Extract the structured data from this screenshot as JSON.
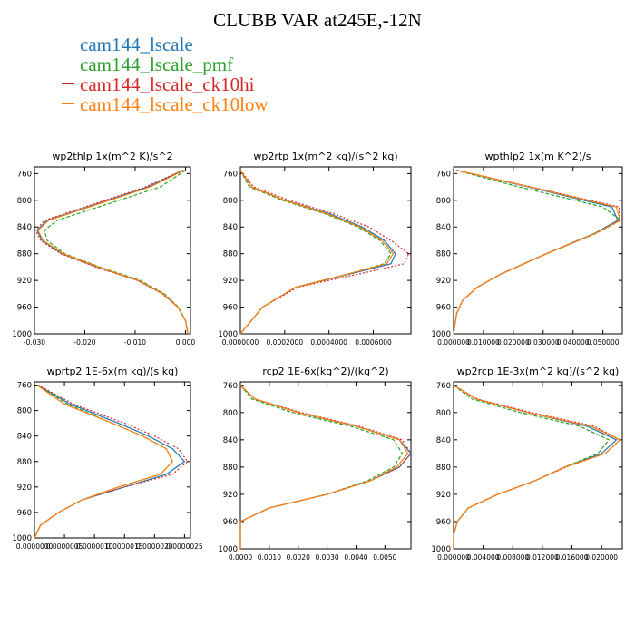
{
  "title": "CLUBB VAR at245E,-12N",
  "legend": [
    {
      "name": "cam144_lscale",
      "color": "#1f77b4"
    },
    {
      "name": "cam144_lscale_pmf",
      "color": "#2ca02c"
    },
    {
      "name": "cam144_lscale_ck10hi",
      "color": "#d62728"
    },
    {
      "name": "cam144_lscale_ck10low",
      "color": "#ff7f0e"
    }
  ],
  "chart_data": [
    {
      "type": "line",
      "title": "wp2thlp   1x(m^2 K)/s^2",
      "xlim": [
        -0.03,
        0.001
      ],
      "xticks": [
        -0.03,
        -0.02,
        -0.01,
        0.0
      ],
      "xticklabels": [
        "-0.030",
        "-0.020",
        "-0.010",
        "0.000"
      ],
      "ylim": [
        1000,
        750
      ],
      "yticks": [
        760,
        800,
        840,
        880,
        920,
        960,
        1000
      ],
      "yticklabels": [
        "760",
        "800",
        "840",
        "880",
        "920",
        "960",
        "1000"
      ],
      "y": [
        755,
        780,
        830,
        845,
        860,
        880,
        900,
        920,
        940,
        960,
        980,
        1000
      ],
      "series": [
        {
          "name": "cam144_lscale",
          "values": [
            -0.0005,
            -0.0075,
            -0.0275,
            -0.0295,
            -0.0285,
            -0.0245,
            -0.0175,
            -0.0095,
            -0.0045,
            -0.0015,
            0.0,
            0.0005
          ]
        },
        {
          "name": "cam144_lscale_pmf",
          "values": [
            0.0,
            -0.005,
            -0.0255,
            -0.028,
            -0.0275,
            -0.024,
            -0.017,
            -0.009,
            -0.0042,
            -0.0014,
            0.0,
            0.0005
          ]
        },
        {
          "name": "cam144_lscale_ck10hi",
          "values": [
            -0.0005,
            -0.008,
            -0.028,
            -0.0298,
            -0.0288,
            -0.0248,
            -0.0178,
            -0.0096,
            -0.0046,
            -0.0015,
            0.0,
            0.0005
          ]
        },
        {
          "name": "cam144_lscale_ck10low",
          "values": [
            -0.0003,
            -0.007,
            -0.0272,
            -0.0293,
            -0.0283,
            -0.0243,
            -0.0173,
            -0.0094,
            -0.0044,
            -0.0015,
            0.0,
            0.0005
          ]
        }
      ]
    },
    {
      "type": "line",
      "title": "wp2rtp   1x(m^2 kg)/(s^2 kg)",
      "xlim": [
        0,
        0.00077
      ],
      "xticks": [
        0,
        0.0002,
        0.0004,
        0.0006
      ],
      "xticklabels": [
        "0.0000000",
        "0.0002000",
        "0.0004000",
        "0.0006000"
      ],
      "ylim": [
        1000,
        750
      ],
      "yticks": [
        760,
        800,
        840,
        880,
        920,
        960,
        1000
      ],
      "yticklabels": [
        "760",
        "800",
        "840",
        "880",
        "920",
        "960",
        "1000"
      ],
      "y": [
        755,
        780,
        800,
        820,
        840,
        860,
        880,
        895,
        910,
        930,
        960,
        1000
      ],
      "series": [
        {
          "name": "cam144_lscale",
          "values": [
            0.0,
            5e-05,
            0.0002,
            0.0004,
            0.00055,
            0.00065,
            0.0007,
            0.00068,
            0.0005,
            0.00025,
            0.0001,
            0.0
          ]
        },
        {
          "name": "cam144_lscale_pmf",
          "values": [
            0.0,
            4e-05,
            0.00019,
            0.00038,
            0.00053,
            0.00063,
            0.00068,
            0.00065,
            0.00049,
            0.00025,
            0.0001,
            0.0
          ]
        },
        {
          "name": "cam144_lscale_ck10hi",
          "values": [
            0.0,
            6e-05,
            0.00022,
            0.00042,
            0.00058,
            0.00068,
            0.00076,
            0.00074,
            0.00054,
            0.00026,
            0.0001,
            0.0
          ]
        },
        {
          "name": "cam144_lscale_ck10low",
          "values": [
            0.0,
            5e-05,
            0.0002,
            0.00039,
            0.00054,
            0.00064,
            0.00069,
            0.00066,
            0.00049,
            0.00025,
            0.0001,
            0.0
          ]
        }
      ]
    },
    {
      "type": "line",
      "title": "wpthlp2   1x(m K^2)/s",
      "xlim": [
        0,
        0.0565
      ],
      "xticks": [
        0,
        0.01,
        0.02,
        0.03,
        0.04,
        0.05
      ],
      "xticklabels": [
        "0.000000",
        "0.010000",
        "0.020000",
        "0.030000",
        "0.040000",
        "0.050000"
      ],
      "ylim": [
        1000,
        750
      ],
      "yticks": [
        760,
        800,
        840,
        880,
        920,
        960,
        1000
      ],
      "yticklabels": [
        "760",
        "800",
        "840",
        "880",
        "920",
        "960",
        "1000"
      ],
      "y": [
        755,
        780,
        810,
        830,
        850,
        880,
        910,
        930,
        950,
        970,
        1000
      ],
      "series": [
        {
          "name": "cam144_lscale",
          "values": [
            0.001,
            0.025,
            0.053,
            0.055,
            0.047,
            0.031,
            0.016,
            0.008,
            0.003,
            0.001,
            0.0
          ]
        },
        {
          "name": "cam144_lscale_pmf",
          "values": [
            0.0008,
            0.022,
            0.05,
            0.056,
            0.0475,
            0.0312,
            0.016,
            0.008,
            0.003,
            0.001,
            0.0
          ]
        },
        {
          "name": "cam144_lscale_ck10hi",
          "values": [
            0.0012,
            0.026,
            0.0555,
            0.0555,
            0.0472,
            0.0311,
            0.0161,
            0.008,
            0.003,
            0.001,
            0.0
          ]
        },
        {
          "name": "cam144_lscale_ck10low",
          "values": [
            0.001,
            0.0255,
            0.0545,
            0.0558,
            0.0473,
            0.0312,
            0.0161,
            0.008,
            0.003,
            0.001,
            0.0
          ]
        }
      ]
    },
    {
      "type": "line",
      "title": "wprtp2   1E-6x(m kg)/(s kg)",
      "xlim": [
        0,
        2.6e-06
      ],
      "xticks": [
        0,
        5e-07,
        1e-06,
        1.5e-06,
        2e-06,
        2.5e-06
      ],
      "xticklabels": [
        "0.0000000",
        "0.0000005",
        "0.0000010",
        "0.0000015",
        "0.0000020",
        "0.0000025"
      ],
      "ylim": [
        1000,
        755
      ],
      "yticks": [
        760,
        800,
        840,
        880,
        920,
        960,
        1000
      ],
      "yticklabels": [
        "760",
        "800",
        "840",
        "880",
        "920",
        "960",
        "1000"
      ],
      "y": [
        760,
        790,
        820,
        840,
        860,
        880,
        900,
        920,
        940,
        960,
        980,
        1000
      ],
      "series": [
        {
          "name": "cam144_lscale",
          "values": [
            5e-08,
            6e-07,
            1.4e-06,
            1.9e-06,
            2.3e-06,
            2.5e-06,
            2.2e-06,
            1.5e-06,
            8e-07,
            4e-07,
            1e-07,
            0.0
          ]
        },
        {
          "name": "cam144_lscale_pmf",
          "values": [
            5e-08,
            5.5e-07,
            1.3e-06,
            1.8e-06,
            2.2e-06,
            2.3e-06,
            2.1e-06,
            1.4e-06,
            8e-07,
            4e-07,
            1e-07,
            0.0
          ]
        },
        {
          "name": "cam144_lscale_ck10hi",
          "values": [
            6e-08,
            6.5e-07,
            1.5e-06,
            2e-06,
            2.4e-06,
            2.55e-06,
            2.3e-06,
            1.5e-06,
            8e-07,
            4e-07,
            1e-07,
            0.0
          ]
        },
        {
          "name": "cam144_lscale_ck10low",
          "values": [
            4e-08,
            5e-07,
            1.3e-06,
            1.8e-06,
            2.2e-06,
            2.3e-06,
            2.1e-06,
            1.4e-06,
            8e-07,
            4e-07,
            1e-07,
            0.0
          ]
        }
      ]
    },
    {
      "type": "line",
      "title": "rcp2   1E-6x(kg^2)/(kg^2)",
      "xlim": [
        0,
        0.0059
      ],
      "xticks": [
        0,
        0.001,
        0.002,
        0.003,
        0.004,
        0.005
      ],
      "xticklabels": [
        "0.0000",
        "0.0010",
        "0.0020",
        "0.0030",
        "0.0040",
        "0.0050"
      ],
      "ylim": [
        1000,
        755
      ],
      "yticks": [
        760,
        800,
        840,
        880,
        920,
        960,
        1000
      ],
      "yticklabels": [
        "760",
        "800",
        "840",
        "880",
        "920",
        "960",
        "1000"
      ],
      "y": [
        760,
        780,
        800,
        820,
        840,
        860,
        880,
        900,
        920,
        940,
        960,
        1000
      ],
      "series": [
        {
          "name": "cam144_lscale",
          "values": [
            0.0,
            0.0005,
            0.002,
            0.004,
            0.0055,
            0.0059,
            0.0055,
            0.0045,
            0.003,
            0.001,
            0.0,
            0.0
          ]
        },
        {
          "name": "cam144_lscale_pmf",
          "values": [
            0.0,
            0.0004,
            0.0018,
            0.0038,
            0.0053,
            0.0056,
            0.0053,
            0.0044,
            0.003,
            0.001,
            0.0,
            0.0
          ]
        },
        {
          "name": "cam144_lscale_ck10hi",
          "values": [
            0.0,
            0.0005,
            0.0021,
            0.0041,
            0.0056,
            0.0059,
            0.0055,
            0.0045,
            0.003,
            0.001,
            0.0,
            0.0
          ]
        },
        {
          "name": "cam144_lscale_ck10low",
          "values": [
            0.0,
            0.0005,
            0.002,
            0.004,
            0.0055,
            0.0058,
            0.0054,
            0.0045,
            0.003,
            0.001,
            0.0,
            0.0
          ]
        }
      ]
    },
    {
      "type": "line",
      "title": "wp2rcp   1E-3x(m^2 kg)/(s^2 kg)",
      "xlim": [
        0,
        0.0228
      ],
      "xticks": [
        0,
        0.004,
        0.008,
        0.012,
        0.016,
        0.02
      ],
      "xticklabels": [
        "0.000000",
        "0.004000",
        "0.008000",
        "0.012000",
        "0.016000",
        "0.020000"
      ],
      "ylim": [
        1000,
        755
      ],
      "yticks": [
        760,
        800,
        840,
        880,
        920,
        960,
        1000
      ],
      "yticklabels": [
        "760",
        "800",
        "840",
        "880",
        "920",
        "960",
        "1000"
      ],
      "y": [
        760,
        780,
        800,
        820,
        840,
        860,
        880,
        900,
        920,
        940,
        960,
        980,
        1000
      ],
      "series": [
        {
          "name": "cam144_lscale",
          "values": [
            0.0,
            0.003,
            0.01,
            0.018,
            0.022,
            0.02,
            0.015,
            0.011,
            0.006,
            0.002,
            0.0005,
            0.0,
            0.0
          ]
        },
        {
          "name": "cam144_lscale_pmf",
          "values": [
            0.0,
            0.0025,
            0.009,
            0.017,
            0.021,
            0.0195,
            0.015,
            0.011,
            0.006,
            0.002,
            0.0005,
            0.0,
            0.0
          ]
        },
        {
          "name": "cam144_lscale_ck10hi",
          "values": [
            0.0,
            0.0032,
            0.0105,
            0.019,
            0.0225,
            0.0205,
            0.0152,
            0.011,
            0.006,
            0.002,
            0.0005,
            0.0,
            0.0
          ]
        },
        {
          "name": "cam144_lscale_ck10low",
          "values": [
            0.0,
            0.003,
            0.01,
            0.0185,
            0.0225,
            0.0205,
            0.015,
            0.011,
            0.006,
            0.002,
            0.0005,
            0.0,
            0.0
          ]
        }
      ]
    }
  ]
}
